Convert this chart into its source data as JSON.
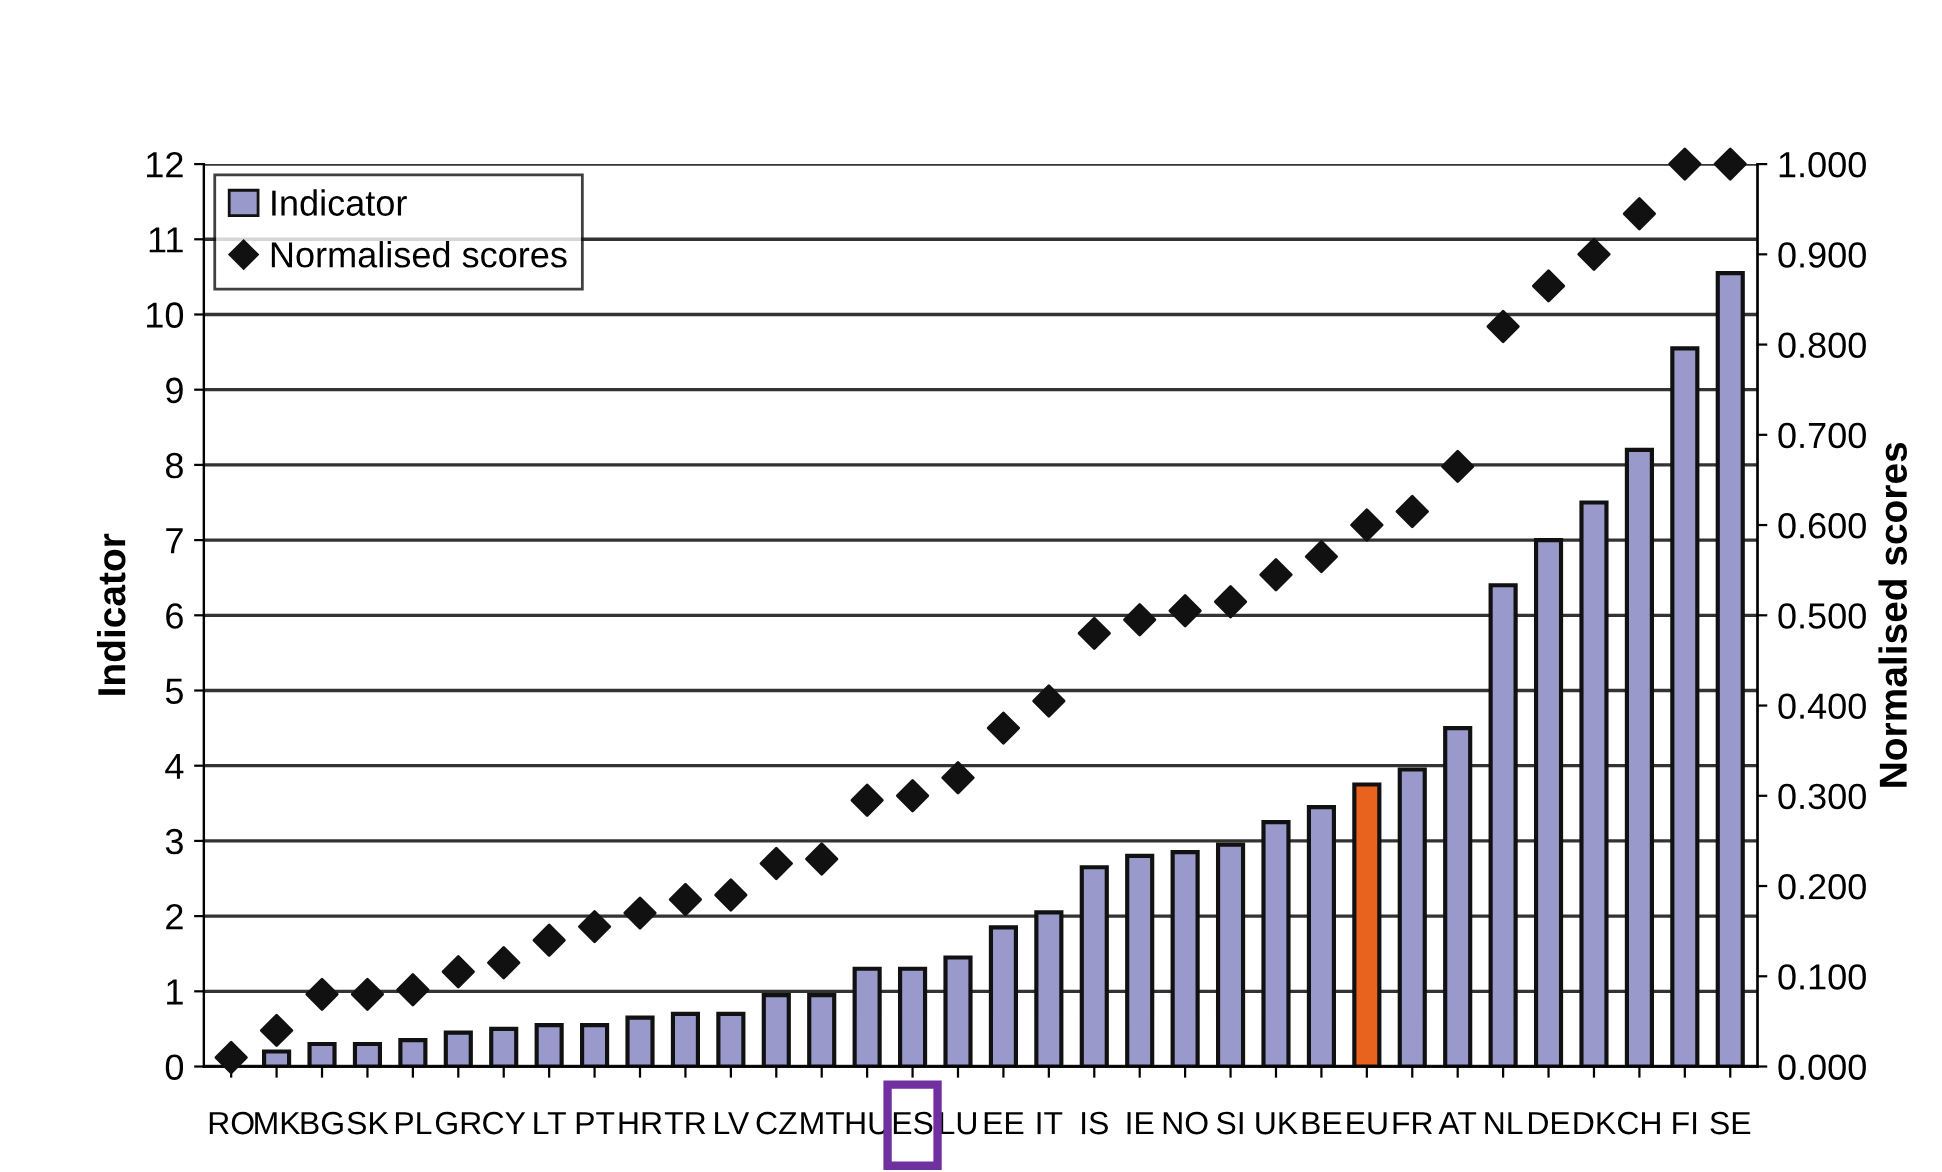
{
  "chart_data": {
    "type": "bar",
    "categories": [
      "RO",
      "MK",
      "BG",
      "SK",
      "PL",
      "GR",
      "CY",
      "LT",
      "PT",
      "HR",
      "TR",
      "LV",
      "CZ",
      "MT",
      "HU",
      "ES",
      "LU",
      "EE",
      "IT",
      "IS",
      "IE",
      "NO",
      "SI",
      "UK",
      "BE",
      "EU",
      "FR",
      "AT",
      "NL",
      "DE",
      "DK",
      "CH",
      "FI",
      "SE"
    ],
    "series": [
      {
        "name": "Indicator",
        "color": "#9999cc",
        "colors": [
          "#9999cc",
          "#9999cc",
          "#9999cc",
          "#9999cc",
          "#9999cc",
          "#9999cc",
          "#9999cc",
          "#9999cc",
          "#9999cc",
          "#9999cc",
          "#9999cc",
          "#9999cc",
          "#9999cc",
          "#9999cc",
          "#9999cc",
          "#9999cc",
          "#9999cc",
          "#9999cc",
          "#9999cc",
          "#9999cc",
          "#9999cc",
          "#9999cc",
          "#9999cc",
          "#9999cc",
          "#9999cc",
          "#e8641e",
          "#9999cc",
          "#9999cc",
          "#9999cc",
          "#9999cc",
          "#9999cc",
          "#9999cc",
          "#9999cc",
          "#9999cc"
        ],
        "values": [
          null,
          0.2,
          0.3,
          0.3,
          0.35,
          0.45,
          0.5,
          0.55,
          0.55,
          0.65,
          0.7,
          0.7,
          0.95,
          0.95,
          1.3,
          1.3,
          1.45,
          1.85,
          2.05,
          2.65,
          2.8,
          2.85,
          2.95,
          3.25,
          3.45,
          3.75,
          3.95,
          4.5,
          6.4,
          7.0,
          7.5,
          8.2,
          9.55,
          10.55
        ]
      },
      {
        "name": "Normalised scores",
        "type": "scatter",
        "axis": "y2",
        "color": "#111111",
        "marker": "diamond",
        "values": [
          0.01,
          0.04,
          0.08,
          0.08,
          0.085,
          0.105,
          0.115,
          0.14,
          0.155,
          0.17,
          0.185,
          0.19,
          0.225,
          0.23,
          0.295,
          0.3,
          0.32,
          0.375,
          0.405,
          0.48,
          0.495,
          0.505,
          0.515,
          0.545,
          0.565,
          0.6,
          0.615,
          0.665,
          0.82,
          0.865,
          0.9,
          0.945,
          1.0,
          1.0
        ]
      }
    ],
    "ylabel": "Indicator",
    "y2label": "Normalised scores",
    "ylim": [
      0,
      12
    ],
    "yticks": [
      0,
      1,
      2,
      3,
      4,
      5,
      6,
      7,
      8,
      9,
      10,
      11,
      12
    ],
    "y2lim": [
      0,
      1.0
    ],
    "y2ticks": [
      {
        "value": 0,
        "label": "0.000"
      },
      {
        "value": 0.1,
        "label": "0.100"
      },
      {
        "value": 0.2,
        "label": "0.200"
      },
      {
        "value": 0.3,
        "label": "0.300"
      },
      {
        "value": 0.4,
        "label": "0.400"
      },
      {
        "value": 0.5,
        "label": "0.500"
      },
      {
        "value": 0.6,
        "label": "0.600"
      },
      {
        "value": 0.7,
        "label": "0.700"
      },
      {
        "value": 0.8,
        "label": "0.800"
      },
      {
        "value": 0.9,
        "label": "0.900"
      },
      {
        "value": 1.0,
        "label": "1.000"
      }
    ],
    "grid": "y",
    "legend": "top left"
  }
}
